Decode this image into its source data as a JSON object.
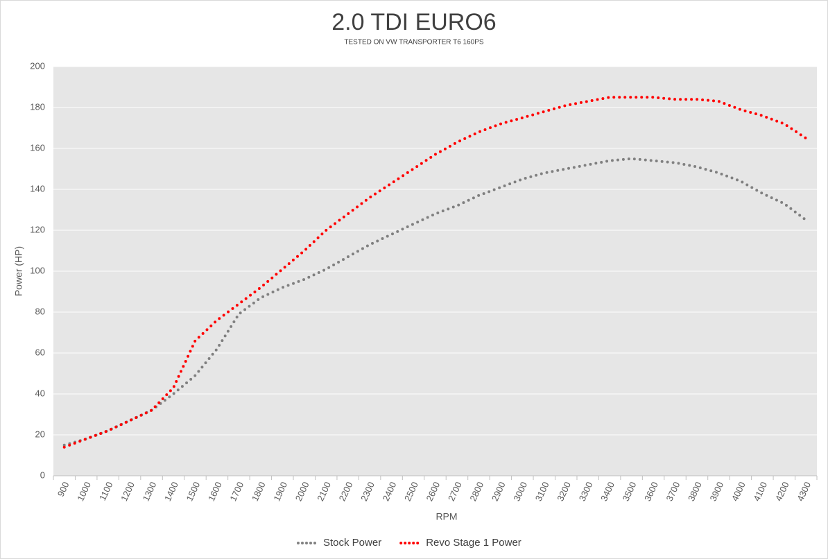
{
  "chart_data": {
    "type": "line",
    "title": "2.0 TDI EURO6",
    "subtitle": "TESTED ON VW TRANSPORTER T6 160PS",
    "x_label": "RPM",
    "y_label": "Power (HP)",
    "categories": [
      "900",
      "1000",
      "1100",
      "1200",
      "1300",
      "1400",
      "1500",
      "1600",
      "1700",
      "1800",
      "1900",
      "2000",
      "2100",
      "2200",
      "2300",
      "2400",
      "2500",
      "2600",
      "2700",
      "2800",
      "2900",
      "3000",
      "3100",
      "3200",
      "3300",
      "3400",
      "3500",
      "3600",
      "3700",
      "3800",
      "3900",
      "4000",
      "4100",
      "4200",
      "4300"
    ],
    "series": [
      {
        "name": "Stock Power",
        "color": "#808080",
        "values": [
          15,
          18,
          22,
          27,
          32,
          40,
          49,
          62,
          79,
          87,
          92,
          96,
          101,
          107,
          113,
          118,
          123,
          128,
          132,
          137,
          141,
          145,
          148,
          150,
          152,
          154,
          155,
          154,
          153,
          151,
          148,
          144,
          138,
          133,
          125
        ]
      },
      {
        "name": "Revo Stage 1 Power",
        "color": "#ff0000",
        "values": [
          14,
          18,
          22,
          27,
          32,
          43,
          66,
          76,
          84,
          92,
          101,
          110,
          120,
          128,
          136,
          143,
          150,
          157,
          163,
          168,
          172,
          175,
          178,
          181,
          183,
          185,
          185,
          185,
          184,
          184,
          183,
          179,
          176,
          172,
          165
        ]
      }
    ],
    "ylim": [
      0,
      200
    ],
    "yticks": [
      0,
      20,
      40,
      60,
      80,
      100,
      120,
      140,
      160,
      180,
      200
    ],
    "grid": true,
    "legend": "bottom"
  }
}
